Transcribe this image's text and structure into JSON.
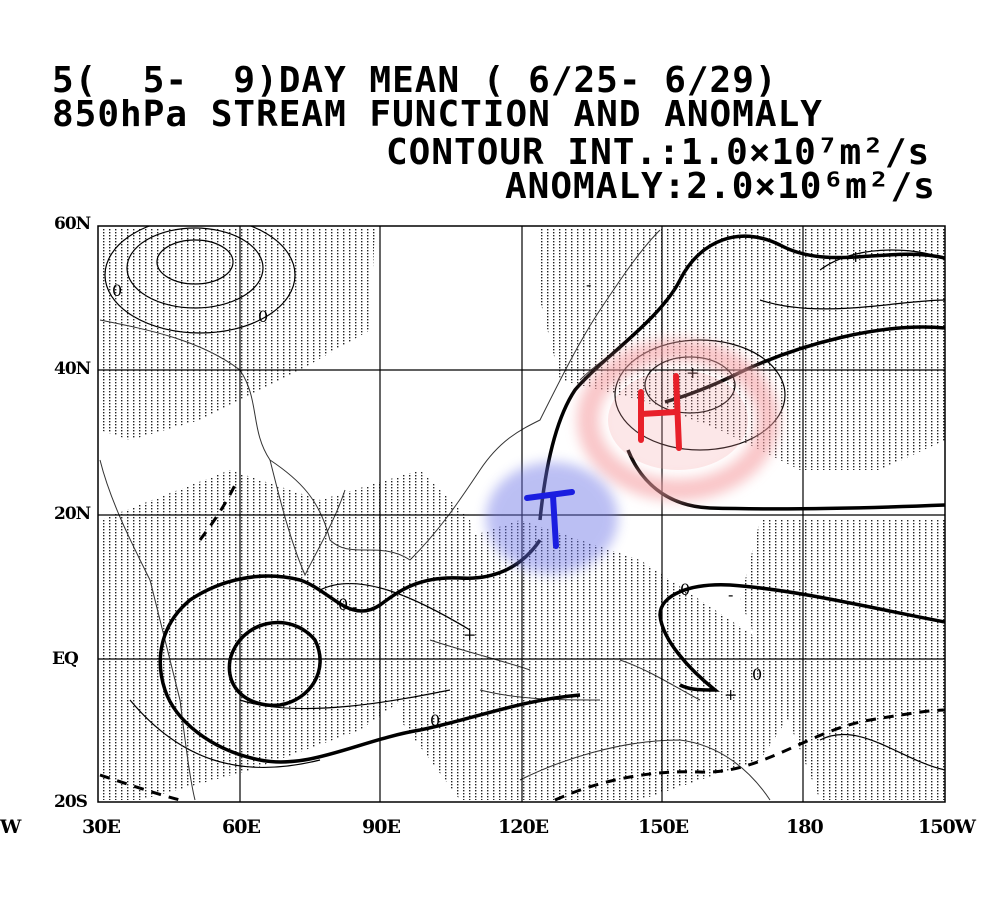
{
  "title": {
    "line1": "5(  5-  9)DAY MEAN ( 6/25- 6/29)",
    "line2": "850hPa STREAM FUNCTION AND ANOMALY",
    "line3": "CONTOUR INT.:1.0×10⁷m²/s",
    "line4": "ANOMALY:2.0×10⁶m²/s"
  },
  "lat_labels": [
    "60N",
    "40N",
    "20N",
    "EQ",
    "20S"
  ],
  "lon_labels": [
    "30E",
    "60E",
    "90E",
    "120E",
    "150E",
    "180",
    "150W"
  ],
  "edge_label": "W",
  "contour_labels": {
    "zero": "0",
    "plus": "+",
    "minus": "-"
  },
  "annotations": {
    "high": {
      "label": "H",
      "color": "#e8202a",
      "halo": "#f5a0a4"
    },
    "low": {
      "label": "T",
      "color": "#1a1ee0",
      "halo": "#6a72e6"
    }
  },
  "colors": {
    "stipple": "#222222",
    "coast": "#333333",
    "contour": "#000000"
  }
}
